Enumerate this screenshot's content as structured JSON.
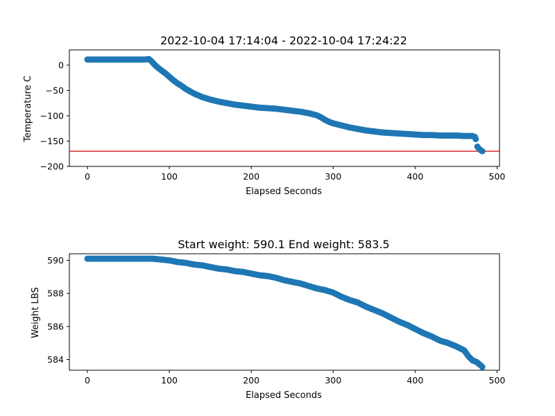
{
  "chart_data": [
    {
      "type": "scatter",
      "title": "2022-10-04 17:14:04 - 2022-10-04 17:24:22",
      "xlabel": "Elapsed Seconds",
      "ylabel": "Temperature C",
      "xlim": [
        -22,
        503
      ],
      "ylim": [
        -200,
        30
      ],
      "xticks": [
        0,
        100,
        200,
        300,
        400,
        500
      ],
      "yticks": [
        0,
        -50,
        -100,
        -150,
        -200
      ],
      "marker_color": "#1f77b4",
      "hline": {
        "y": -170,
        "color": "#d62728"
      },
      "series": [
        {
          "x": [
            0,
            10,
            20,
            30,
            40,
            50,
            60,
            70,
            75,
            78,
            82,
            86,
            90,
            95,
            100,
            105,
            110,
            115,
            120,
            130,
            140,
            150,
            160,
            170,
            180,
            190,
            200,
            210,
            220,
            230,
            240,
            250,
            260,
            270,
            275,
            280,
            285,
            290,
            295,
            300,
            310,
            320,
            330,
            340,
            350,
            360,
            370,
            380,
            390,
            400,
            410,
            420,
            430,
            440,
            450,
            460,
            465,
            470,
            473,
            474,
            476,
            478,
            480,
            482
          ],
          "y": [
            11,
            11,
            11,
            11,
            11,
            11,
            11,
            11,
            12,
            8,
            1,
            -5,
            -10,
            -16,
            -23,
            -30,
            -36,
            -41,
            -47,
            -56,
            -63,
            -68,
            -72,
            -75,
            -78,
            -80,
            -82,
            -84,
            -85,
            -86,
            -88,
            -90,
            -92,
            -95,
            -97,
            -99,
            -103,
            -108,
            -112,
            -115,
            -119,
            -123,
            -126,
            -129,
            -131,
            -133,
            -134,
            -135,
            -136,
            -137,
            -138,
            -138,
            -139,
            -139,
            -139,
            -140,
            -140,
            -140,
            -142,
            -146,
            -161,
            -165,
            -168,
            -170
          ]
        }
      ]
    },
    {
      "type": "scatter",
      "title": "Start weight: 590.1 End weight: 583.5",
      "xlabel": "Elapsed Seconds",
      "ylabel": "Weight LBS",
      "xlim": [
        -22,
        503
      ],
      "ylim": [
        583.35,
        590.4
      ],
      "xticks": [
        0,
        100,
        200,
        300,
        400,
        500
      ],
      "yticks": [
        584,
        586,
        588,
        590
      ],
      "marker_color": "#1f77b4",
      "series": [
        {
          "x": [
            0,
            10,
            20,
            30,
            40,
            50,
            60,
            70,
            80,
            90,
            100,
            110,
            120,
            130,
            140,
            150,
            160,
            170,
            180,
            190,
            200,
            210,
            220,
            230,
            240,
            250,
            260,
            270,
            280,
            290,
            300,
            310,
            320,
            330,
            340,
            350,
            360,
            370,
            380,
            390,
            400,
            410,
            420,
            430,
            440,
            450,
            460,
            465,
            470,
            475,
            480,
            482
          ],
          "y": [
            590.1,
            590.1,
            590.1,
            590.1,
            590.1,
            590.1,
            590.1,
            590.1,
            590.1,
            590.05,
            590.0,
            589.9,
            589.85,
            589.75,
            589.7,
            589.6,
            589.5,
            589.45,
            589.35,
            589.3,
            589.2,
            589.1,
            589.05,
            588.95,
            588.8,
            588.7,
            588.6,
            588.45,
            588.3,
            588.2,
            588.05,
            587.8,
            587.6,
            587.45,
            587.2,
            587.0,
            586.8,
            586.55,
            586.3,
            586.1,
            585.85,
            585.6,
            585.4,
            585.15,
            585.0,
            584.8,
            584.55,
            584.2,
            583.95,
            583.85,
            583.65,
            583.55
          ]
        }
      ]
    }
  ]
}
